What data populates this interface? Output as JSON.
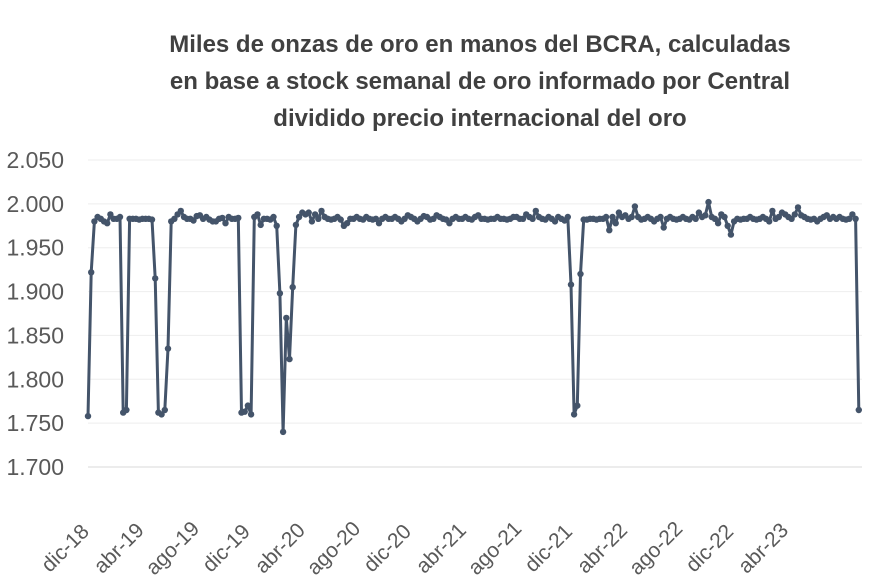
{
  "chart_data": {
    "type": "line",
    "title_lines": [
      "Miles de onzas de oro en manos del BCRA, calculadas",
      "en base a stock semanal de oro informado por Central",
      "dividido precio internacional del oro"
    ],
    "xlabel": "",
    "ylabel": "",
    "ylim": [
      1700,
      2050
    ],
    "yticks": [
      "2.050",
      "2.000",
      "1.950",
      "1.900",
      "1.850",
      "1.800",
      "1.750",
      "1.700"
    ],
    "ytick_values": [
      2050,
      2000,
      1950,
      1900,
      1850,
      1800,
      1750,
      1700
    ],
    "xticks": [
      "dic-18",
      "abr-19",
      "ago-19",
      "dic-19",
      "abr-20",
      "ago-20",
      "dic-20",
      "abr-21",
      "ago-21",
      "dic-21",
      "abr-22",
      "ago-22",
      "dic-22",
      "abr-23"
    ],
    "xlim": [
      0,
      242
    ],
    "grid": true,
    "legend": "none",
    "color": "#44546a",
    "series": [
      {
        "x": [
          0,
          1,
          2,
          3,
          4,
          5,
          6,
          7,
          8,
          9,
          10,
          11,
          12,
          13,
          14,
          15,
          16,
          17,
          18,
          19,
          20,
          21,
          22,
          23,
          24,
          25,
          26,
          27,
          28,
          29,
          30,
          31,
          32,
          33,
          34,
          35,
          36,
          37,
          38,
          39,
          40,
          41,
          42,
          43,
          44,
          45,
          46,
          47,
          48,
          49,
          50,
          51,
          52,
          53,
          54,
          55,
          56,
          57,
          58,
          59,
          60,
          61,
          62,
          63,
          64,
          65,
          66,
          67,
          68,
          69,
          70,
          71,
          72,
          73,
          74,
          75,
          76,
          77,
          78,
          79,
          80,
          81,
          82,
          83,
          84,
          85,
          86,
          87,
          88,
          89,
          90,
          91,
          92,
          93,
          94,
          95,
          96,
          97,
          98,
          99,
          100,
          101,
          102,
          103,
          104,
          105,
          106,
          107,
          108,
          109,
          110,
          111,
          112,
          113,
          114,
          115,
          116,
          117,
          118,
          119,
          120,
          121,
          122,
          123,
          124,
          125,
          126,
          127,
          128,
          129,
          130,
          131,
          132,
          133,
          134,
          135,
          136,
          137,
          138,
          139,
          140,
          141,
          142,
          143,
          144,
          145,
          146,
          147,
          148,
          149,
          150,
          151,
          152,
          153,
          154,
          155,
          156,
          157,
          158,
          159,
          160,
          161,
          162,
          163,
          164,
          165,
          166,
          167,
          168,
          169,
          170,
          171,
          172,
          173,
          174,
          175,
          176,
          177,
          178,
          179,
          180,
          181,
          182,
          183,
          184,
          185,
          186,
          187,
          188,
          189,
          190,
          191,
          192,
          193,
          194,
          195,
          196,
          197,
          198,
          199,
          200,
          201,
          202,
          203,
          204,
          205,
          206,
          207,
          208,
          209,
          210,
          211,
          212,
          213,
          214,
          215,
          216,
          217,
          218,
          219,
          220,
          221,
          222,
          223,
          224,
          225,
          226,
          227,
          228,
          229,
          230,
          231,
          232,
          233,
          234,
          235,
          236,
          237,
          238,
          239,
          240,
          241
        ],
        "y": [
          1758,
          1922,
          1980,
          1985,
          1983,
          1980,
          1978,
          1988,
          1983,
          1983,
          1985,
          1762,
          1765,
          1983,
          1983,
          1983,
          1982,
          1983,
          1983,
          1983,
          1982,
          1915,
          1762,
          1760,
          1765,
          1835,
          1980,
          1983,
          1988,
          1992,
          1985,
          1983,
          1983,
          1981,
          1986,
          1987,
          1983,
          1985,
          1982,
          1980,
          1980,
          1983,
          1984,
          1978,
          1985,
          1983,
          1983,
          1984,
          1762,
          1763,
          1770,
          1760,
          1985,
          1988,
          1976,
          1983,
          1983,
          1982,
          1985,
          1975,
          1898,
          1740,
          1870,
          1823,
          1905,
          1976,
          1985,
          1990,
          1988,
          1990,
          1980,
          1988,
          1983,
          1992,
          1985,
          1983,
          1982,
          1983,
          1985,
          1982,
          1975,
          1978,
          1983,
          1983,
          1985,
          1983,
          1982,
          1985,
          1983,
          1982,
          1983,
          1978,
          1983,
          1985,
          1983,
          1983,
          1985,
          1983,
          1980,
          1983,
          1987,
          1985,
          1983,
          1980,
          1983,
          1986,
          1985,
          1982,
          1983,
          1987,
          1985,
          1983,
          1982,
          1978,
          1983,
          1985,
          1983,
          1983,
          1985,
          1983,
          1982,
          1985,
          1987,
          1983,
          1983,
          1982,
          1983,
          1983,
          1985,
          1983,
          1983,
          1982,
          1983,
          1985,
          1985,
          1983,
          1983,
          1988,
          1985,
          1983,
          1992,
          1985,
          1983,
          1982,
          1985,
          1983,
          1980,
          1985,
          1983,
          1981,
          1985,
          1908,
          1760,
          1770,
          1920,
          1982,
          1982,
          1983,
          1983,
          1982,
          1983,
          1983,
          1985,
          1970,
          1985,
          1978,
          1990,
          1985,
          1987,
          1983,
          1985,
          1997,
          1985,
          1982,
          1983,
          1985,
          1983,
          1980,
          1983,
          1985,
          1973,
          1983,
          1985,
          1983,
          1982,
          1983,
          1985,
          1983,
          1982,
          1985,
          1983,
          1990,
          1985,
          1987,
          2002,
          1985,
          1983,
          1978,
          1988,
          1985,
          1975,
          1965,
          1980,
          1983,
          1982,
          1983,
          1983,
          1985,
          1983,
          1982,
          1983,
          1985,
          1983,
          1980,
          1992,
          1983,
          1985,
          1990,
          1988,
          1985,
          1983,
          1988,
          1996,
          1987,
          1985,
          1983,
          1982,
          1983,
          1980,
          1983,
          1985,
          1987,
          1983,
          1985,
          1983,
          1985,
          1983,
          1982,
          1983,
          1988,
          1983,
          1765
        ]
      }
    ]
  }
}
